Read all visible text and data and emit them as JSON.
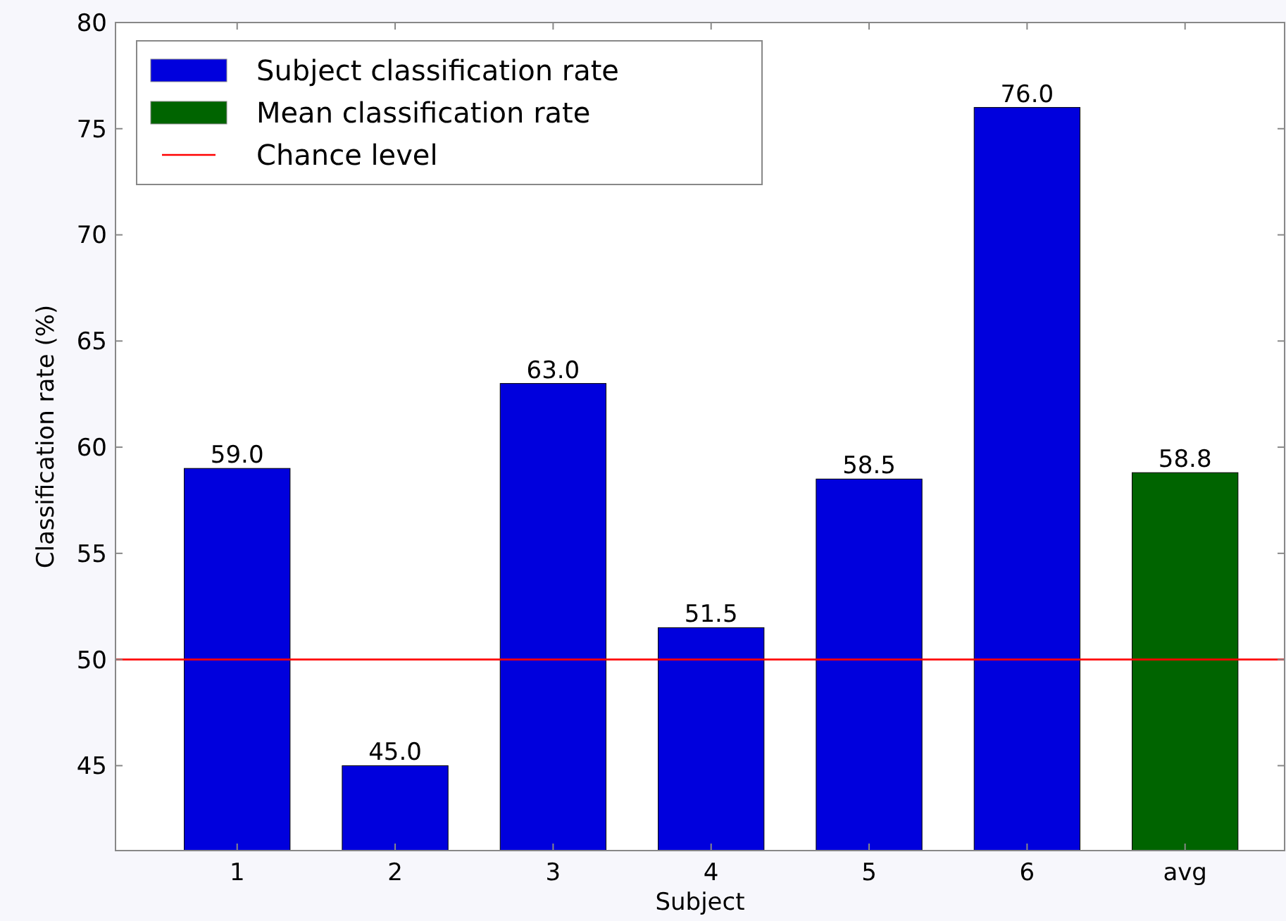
{
  "chart_data": {
    "type": "bar",
    "xlabel": "Subject",
    "ylabel": "Classification rate (%)",
    "categories": [
      "1",
      "2",
      "3",
      "4",
      "5",
      "6",
      "avg"
    ],
    "series": [
      {
        "name": "Subject classification rate",
        "color": "#0000dd",
        "values": [
          59.0,
          45.0,
          63.0,
          51.5,
          58.5,
          76.0,
          null
        ],
        "value_labels": [
          "59.0",
          "45.0",
          "63.0",
          "51.5",
          "58.5",
          "76.0",
          null
        ]
      },
      {
        "name": "Mean classification rate",
        "color": "#006400",
        "values": [
          null,
          null,
          null,
          null,
          null,
          null,
          58.8
        ],
        "value_labels": [
          null,
          null,
          null,
          null,
          null,
          null,
          "58.8"
        ]
      }
    ],
    "ylim": [
      41,
      80
    ],
    "yticks": [
      45,
      50,
      55,
      60,
      65,
      70,
      75,
      80
    ],
    "ref_lines": [
      {
        "axis": "y",
        "value": 50,
        "label": "Chance level",
        "color": "#ff0000"
      }
    ],
    "legend": "top left",
    "grid": false
  }
}
